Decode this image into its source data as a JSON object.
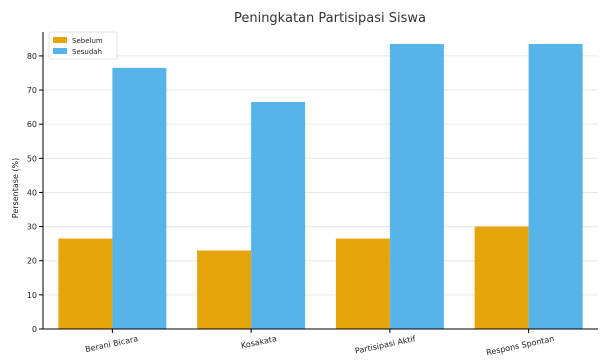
{
  "chart_data": {
    "type": "bar",
    "title": "Peningkatan Partisipasi Siswa",
    "xlabel": "",
    "ylabel": "Persentase (%)",
    "categories": [
      "Berani Bicara",
      "Kosakata",
      "Partisipasi Aktif",
      "Respons Spontan"
    ],
    "series": [
      {
        "name": "Sebelum",
        "values": [
          26.5,
          23,
          26.5,
          30
        ],
        "color": "#E5A50A"
      },
      {
        "name": "Sesudah",
        "values": [
          76.5,
          66.5,
          83.5,
          83.5
        ],
        "color": "#56B4E9"
      }
    ],
    "ylim": [
      0,
      87
    ],
    "yticks": [
      0,
      10,
      20,
      30,
      40,
      50,
      60,
      70,
      80
    ],
    "grid": true,
    "legend_position": "top-left"
  }
}
